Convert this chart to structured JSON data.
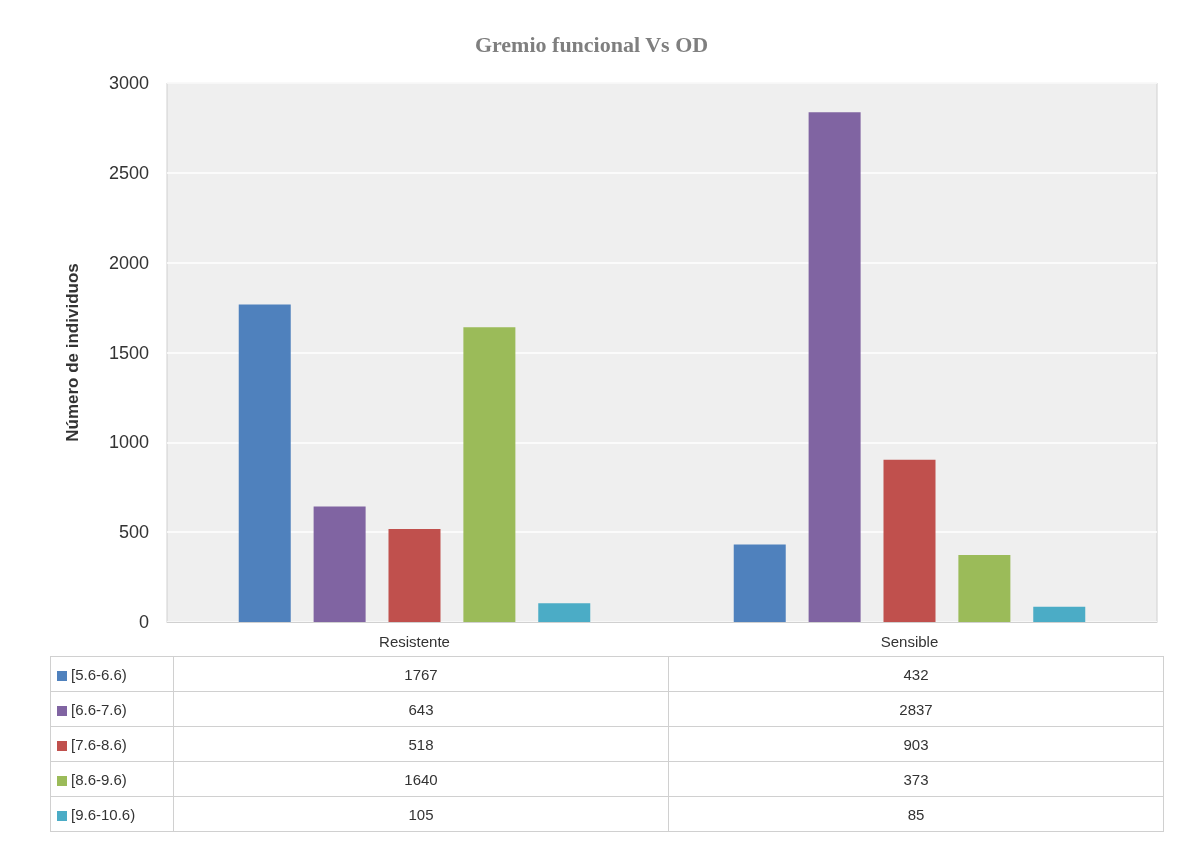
{
  "chart_data": {
    "type": "bar",
    "title": "Gremio funcional Vs OD",
    "ylabel": "Número de individuos",
    "categories": [
      "Resistente",
      "Sensible"
    ],
    "series": [
      {
        "name": "[5.6-6.6)",
        "color": "#4f81bd",
        "values": [
          1767,
          432
        ]
      },
      {
        "name": "[6.6-7.6)",
        "color": "#8064a2",
        "values": [
          643,
          2837
        ]
      },
      {
        "name": "[7.6-8.6)",
        "color": "#c0504d",
        "values": [
          518,
          903
        ]
      },
      {
        "name": "[8.6-9.6)",
        "color": "#9bbb59",
        "values": [
          1640,
          373
        ]
      },
      {
        "name": "[9.6-10.6)",
        "color": "#4bacc6",
        "values": [
          105,
          85
        ]
      }
    ],
    "ylim": [
      0,
      3000
    ],
    "yticks": [
      0,
      500,
      1000,
      1500,
      2000,
      2500,
      3000
    ],
    "grid": "y",
    "legend": "bottom",
    "data_labels": true
  }
}
